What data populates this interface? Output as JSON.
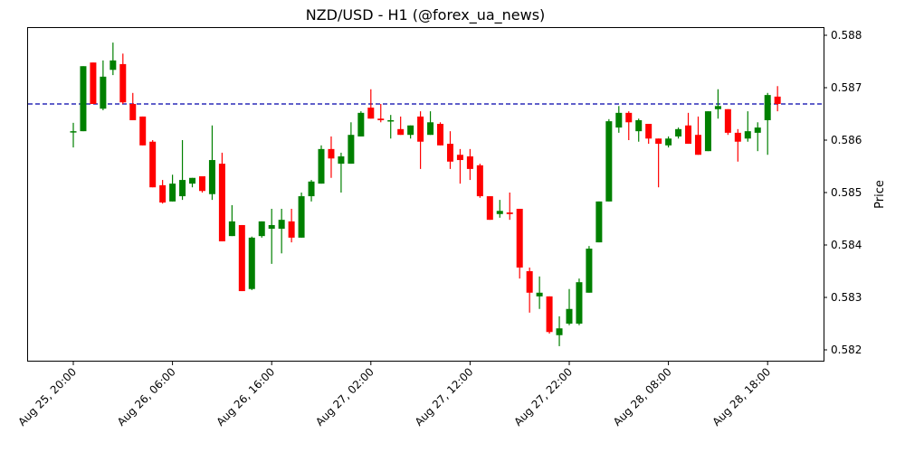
{
  "chart_data": {
    "type": "candlestick",
    "title": "NZD/USD - H1 (@forex_ua_news)",
    "xlabel": "",
    "ylabel": "Price",
    "ylim": [
      0.58178,
      0.58815
    ],
    "yticks": [
      "0.582",
      "0.583",
      "0.584",
      "0.585",
      "0.586",
      "0.587",
      "0.588"
    ],
    "ytick_values": [
      0.582,
      0.583,
      0.584,
      0.585,
      0.586,
      0.587,
      0.588
    ],
    "xticks": [
      "Aug 25, 20:00",
      "Aug 26, 06:00",
      "Aug 26, 16:00",
      "Aug 27, 02:00",
      "Aug 27, 12:00",
      "Aug 27, 22:00",
      "Aug 28, 08:00",
      "Aug 28, 18:00"
    ],
    "xtick_candle_index": [
      0,
      10,
      20,
      30,
      40,
      50,
      60,
      70
    ],
    "reference_line": {
      "value": 0.58669,
      "style": "dashed",
      "color": "#0000aa"
    },
    "colors": {
      "up": "#008000",
      "down": "#ff0000"
    },
    "ohlc_fields": [
      "open",
      "high",
      "low",
      "close"
    ],
    "candles": [
      [
        0.58617,
        0.58633,
        0.58586,
        0.58617
      ],
      [
        0.58617,
        0.58741,
        0.58617,
        0.58741
      ],
      [
        0.58748,
        0.58748,
        0.58669,
        0.58669
      ],
      [
        0.5866,
        0.58752,
        0.58657,
        0.58721
      ],
      [
        0.58734,
        0.58786,
        0.58724,
        0.58752
      ],
      [
        0.58745,
        0.58765,
        0.58669,
        0.58672
      ],
      [
        0.58669,
        0.5869,
        0.58638,
        0.58638
      ],
      [
        0.58645,
        0.58645,
        0.5859,
        0.5859
      ],
      [
        0.58597,
        0.586,
        0.5851,
        0.5851
      ],
      [
        0.58514,
        0.58524,
        0.58479,
        0.58481
      ],
      [
        0.58483,
        0.58534,
        0.58483,
        0.58517
      ],
      [
        0.58493,
        0.586,
        0.58486,
        0.58524
      ],
      [
        0.58517,
        0.58528,
        0.5851,
        0.58528
      ],
      [
        0.58531,
        0.58531,
        0.585,
        0.58503
      ],
      [
        0.58497,
        0.58628,
        0.58486,
        0.58562
      ],
      [
        0.58555,
        0.58576,
        0.58407,
        0.58407
      ],
      [
        0.58417,
        0.58476,
        0.58417,
        0.58445
      ],
      [
        0.58438,
        0.58438,
        0.58312,
        0.58312
      ],
      [
        0.58316,
        0.58416,
        0.58314,
        0.58414
      ],
      [
        0.58417,
        0.58445,
        0.58414,
        0.58445
      ],
      [
        0.58431,
        0.58469,
        0.58364,
        0.58438
      ],
      [
        0.58431,
        0.58469,
        0.58384,
        0.58448
      ],
      [
        0.58445,
        0.58469,
        0.58405,
        0.58414
      ],
      [
        0.58414,
        0.585,
        0.58414,
        0.58493
      ],
      [
        0.58493,
        0.58524,
        0.58483,
        0.58521
      ],
      [
        0.58517,
        0.5859,
        0.58517,
        0.58583
      ],
      [
        0.58583,
        0.58607,
        0.58528,
        0.58565
      ],
      [
        0.58555,
        0.58576,
        0.585,
        0.58569
      ],
      [
        0.58555,
        0.58634,
        0.58555,
        0.5861
      ],
      [
        0.58607,
        0.58655,
        0.58607,
        0.58652
      ],
      [
        0.58662,
        0.58697,
        0.58641,
        0.58641
      ],
      [
        0.58641,
        0.58669,
        0.58634,
        0.58638
      ],
      [
        0.58638,
        0.58648,
        0.58603,
        0.58638
      ],
      [
        0.58621,
        0.58645,
        0.5861,
        0.5861
      ],
      [
        0.5861,
        0.58628,
        0.58603,
        0.58628
      ],
      [
        0.58645,
        0.58655,
        0.58545,
        0.58597
      ],
      [
        0.5861,
        0.58655,
        0.5861,
        0.58634
      ],
      [
        0.58631,
        0.58634,
        0.5859,
        0.5859
      ],
      [
        0.58593,
        0.58617,
        0.58545,
        0.58559
      ],
      [
        0.58572,
        0.58583,
        0.58517,
        0.58562
      ],
      [
        0.58569,
        0.58583,
        0.58524,
        0.58545
      ],
      [
        0.58552,
        0.58555,
        0.5849,
        0.58493
      ],
      [
        0.58493,
        0.58493,
        0.58448,
        0.58448
      ],
      [
        0.58459,
        0.58486,
        0.58452,
        0.58465
      ],
      [
        0.58462,
        0.585,
        0.58448,
        0.58459
      ],
      [
        0.58469,
        0.58469,
        0.58336,
        0.58357
      ],
      [
        0.5835,
        0.58357,
        0.58271,
        0.58309
      ],
      [
        0.58302,
        0.5834,
        0.58278,
        0.58309
      ],
      [
        0.58302,
        0.58302,
        0.58231,
        0.58234
      ],
      [
        0.58228,
        0.58264,
        0.58207,
        0.58241
      ],
      [
        0.5825,
        0.58316,
        0.58247,
        0.58278
      ],
      [
        0.5825,
        0.58336,
        0.58247,
        0.58329
      ],
      [
        0.58309,
        0.58398,
        0.58309,
        0.58393
      ],
      [
        0.58405,
        0.58483,
        0.58405,
        0.58483
      ],
      [
        0.58483,
        0.5864,
        0.58483,
        0.58636
      ],
      [
        0.58624,
        0.58665,
        0.58614,
        0.58652
      ],
      [
        0.58652,
        0.58655,
        0.586,
        0.58634
      ],
      [
        0.58617,
        0.58641,
        0.58597,
        0.58638
      ],
      [
        0.58631,
        0.58631,
        0.58593,
        0.58603
      ],
      [
        0.58603,
        0.58603,
        0.5851,
        0.58593
      ],
      [
        0.5859,
        0.58607,
        0.58586,
        0.58603
      ],
      [
        0.58607,
        0.58624,
        0.58603,
        0.58621
      ],
      [
        0.58628,
        0.58652,
        0.58593,
        0.58593
      ],
      [
        0.5861,
        0.58645,
        0.58572,
        0.58572
      ],
      [
        0.58579,
        0.58655,
        0.58579,
        0.58655
      ],
      [
        0.58659,
        0.58697,
        0.58641,
        0.58665
      ],
      [
        0.58659,
        0.58659,
        0.5861,
        0.58614
      ],
      [
        0.58614,
        0.58621,
        0.58559,
        0.58597
      ],
      [
        0.58603,
        0.58655,
        0.58597,
        0.58617
      ],
      [
        0.58614,
        0.58634,
        0.58579,
        0.58624
      ],
      [
        0.58638,
        0.5869,
        0.58572,
        0.58686
      ],
      [
        0.58683,
        0.58703,
        0.58655,
        0.58669
      ]
    ]
  }
}
